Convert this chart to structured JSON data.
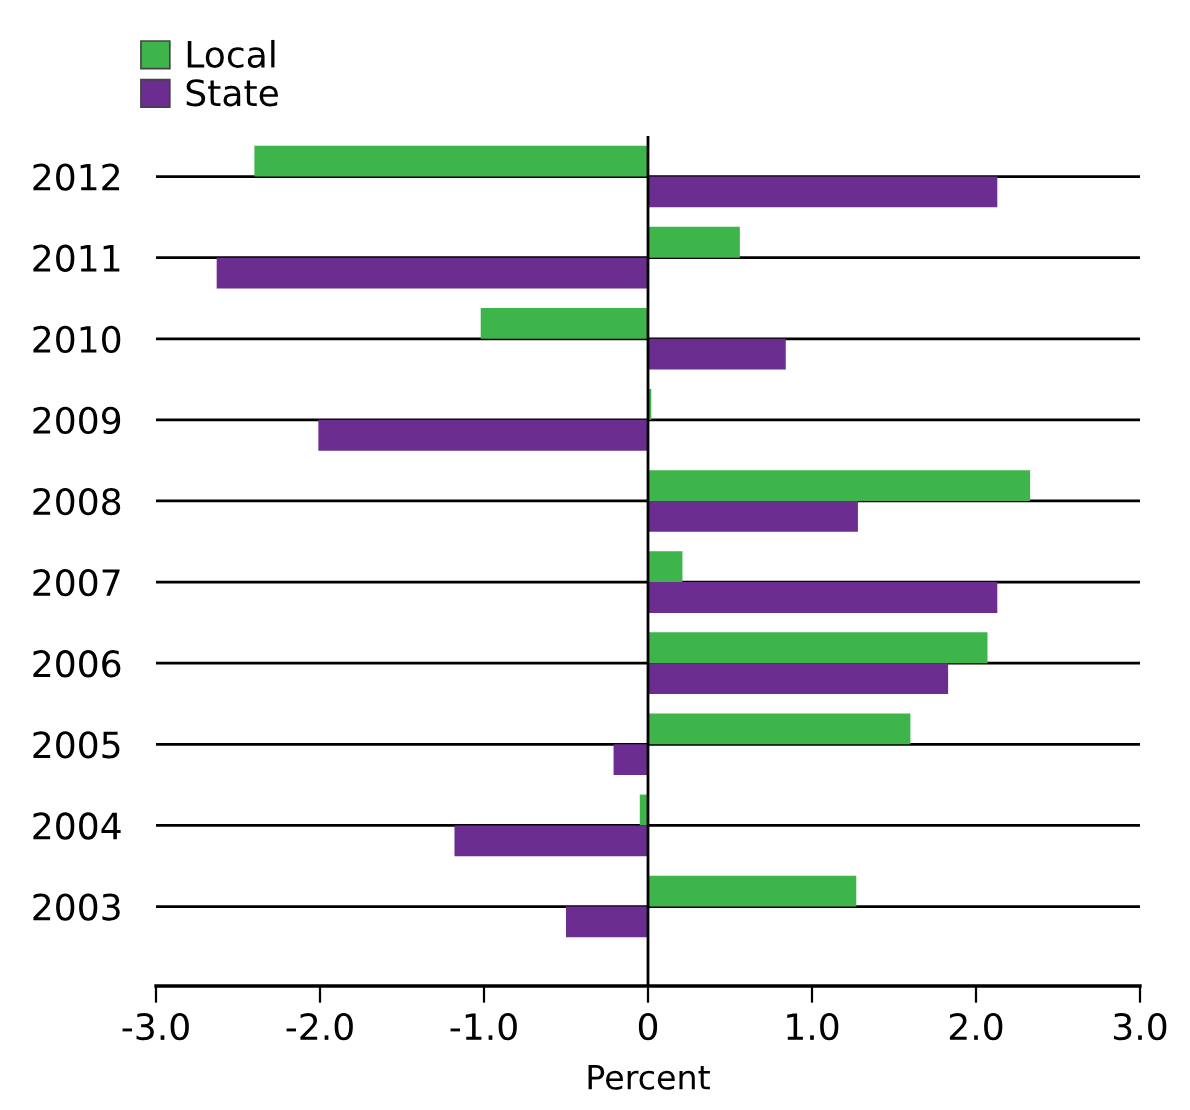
{
  "chart_data": {
    "type": "bar",
    "orientation": "horizontal",
    "xlabel": "Percent",
    "categories": [
      "2012",
      "2011",
      "2010",
      "2009",
      "2008",
      "2007",
      "2006",
      "2005",
      "2004",
      "2003"
    ],
    "series": [
      {
        "name": "Local",
        "color": "#3db54a",
        "values": [
          -2.4,
          0.56,
          -1.02,
          0.02,
          2.33,
          0.21,
          2.07,
          1.6,
          -0.05,
          1.27
        ]
      },
      {
        "name": "State",
        "color": "#6b2d90",
        "values": [
          2.13,
          -2.63,
          0.84,
          -2.01,
          1.28,
          2.13,
          1.83,
          -0.21,
          -1.18,
          -0.5
        ]
      }
    ],
    "xlim": [
      -3.0,
      3.0
    ],
    "xticks": [
      {
        "value": -3.0,
        "label": "-3.0"
      },
      {
        "value": -2.0,
        "label": "-2.0"
      },
      {
        "value": -1.0,
        "label": "-1.0"
      },
      {
        "value": 0,
        "label": "0"
      },
      {
        "value": 1.0,
        "label": "1.0"
      },
      {
        "value": 2.0,
        "label": "2.0"
      },
      {
        "value": 3.0,
        "label": "3.0"
      }
    ],
    "ref_lines": [
      {
        "axis": "x",
        "value": 0,
        "color": "#000000"
      }
    ],
    "grid": "y",
    "legend": "top left"
  }
}
